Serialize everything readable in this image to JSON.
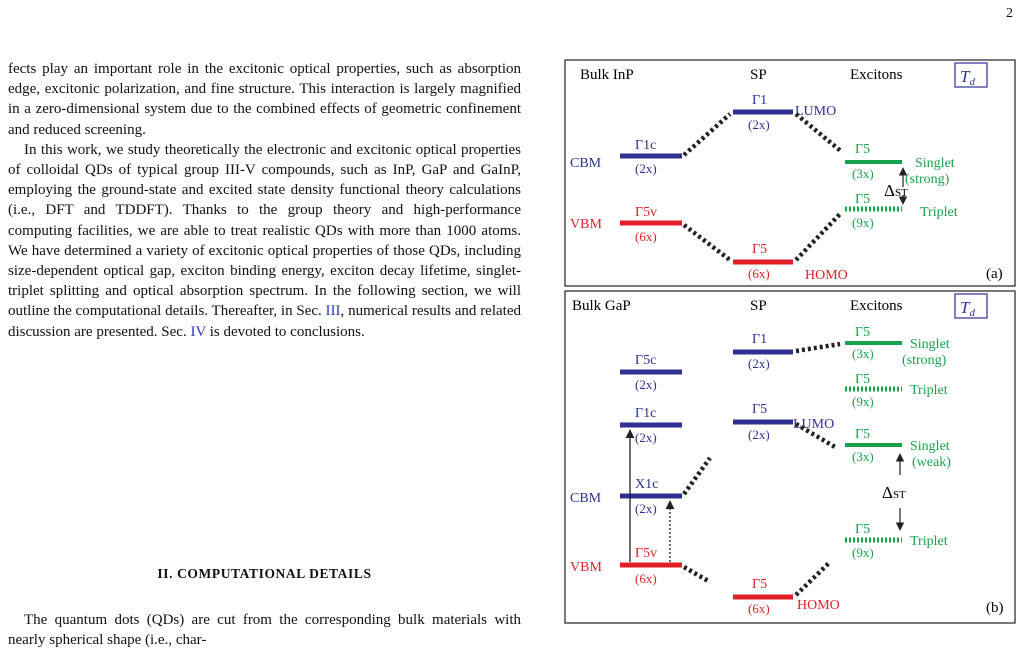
{
  "page_number": "2",
  "paragraphs": [
    "fects play an important role in the excitonic optical properties, such as absorption edge, excitonic polarization, and fine structure. This interaction is largely magnified in a zero-dimensional system due to the combined effects of geometric confinement and reduced screening.",
    "In this work, we study theoretically the electronic and excitonic optical properties of colloidal QDs of typical group III-V compounds, such as InP, GaP and GaInP, employing the ground-state and excited state density functional theory calculations (i.e., DFT and TDDFT). Thanks to the group theory and high-performance computing facilities, we are able to treat realistic QDs with more than 1000 atoms. We have determined a variety of excitonic optical properties of those QDs, including size-dependent optical gap, exciton binding energy, exciton decay lifetime, singlet-triplet splitting and optical absorption spectrum. In the following section, we will outline the computational details. Thereafter, in Sec."
  ],
  "para2_link1": "III",
  "para2_mid": ", numerical results and related discussion are presented. Sec.",
  "para2_link2": "IV",
  "para2_end": "is devoted to conclusions.",
  "section_heading": "II.   COMPUTATIONAL DETAILS",
  "section_para": "The quantum dots (QDs) are cut from the corresponding bulk materials with nearly spherical shape (i.e., char-",
  "figure": {
    "colors": {
      "blue": "#2e3192",
      "red": "#e41e26",
      "green": "#16a34a",
      "dark": "#222222"
    },
    "panel_a": {
      "headers": [
        "Bulk InP",
        "SP",
        "Excitons"
      ],
      "symmetry": "T",
      "symmetry_sub": "d",
      "panel_label": "(a)",
      "labels": {
        "cbm": "CBM",
        "vbm": "VBM",
        "g1c": "Γ1c",
        "g1c_deg": "(2x)",
        "g5v": "Γ5v",
        "g5v_deg": "(6x)",
        "sp_g1": "Γ1",
        "sp_g1_deg": "(2x)",
        "lumo": "LUMO",
        "sp_g5": "Γ5",
        "sp_g5_deg": "(6x)",
        "homo": "HOMO",
        "ex_s": "Γ5",
        "ex_s_deg": "(3x)",
        "singlet": "Singlet",
        "strong": "(strong)",
        "ex_t": "Γ5",
        "ex_t_deg": "(9x)",
        "triplet": "Triplet",
        "delta": "Δ",
        "delta_sub": "ST"
      }
    },
    "panel_b": {
      "headers": [
        "Bulk GaP",
        "SP",
        "Excitons"
      ],
      "symmetry": "T",
      "symmetry_sub": "d",
      "panel_label": "(b)",
      "labels": {
        "cbm": "CBM",
        "vbm": "VBM",
        "g5c": "Γ5c",
        "g5c_deg": "(2x)",
        "g1c": "Γ1c",
        "g1c_deg": "(2x)",
        "x1c": "X1c",
        "x1c_deg": "(2x)",
        "g5v": "Γ5v",
        "g5v_deg": "(6x)",
        "sp_g1": "Γ1",
        "sp_g1_deg": "(2x)",
        "sp_g5u": "Γ5",
        "sp_g5u_deg": "(2x)",
        "lumo": "LUMO",
        "sp_g5": "Γ5",
        "sp_g5_deg": "(6x)",
        "homo": "HOMO",
        "ex1": "Γ5",
        "ex1_deg": "(3x)",
        "singlet1": "Singlet",
        "strong": "(strong)",
        "ex2": "Γ5",
        "ex2_deg": "(9x)",
        "triplet1": "Triplet",
        "ex3": "Γ5",
        "ex3_deg": "(3x)",
        "singlet2": "Singlet",
        "weak": "(weak)",
        "ex4": "Γ5",
        "ex4_deg": "(9x)",
        "triplet2": "Triplet",
        "delta": "Δ",
        "delta_sub": "ST"
      }
    }
  }
}
